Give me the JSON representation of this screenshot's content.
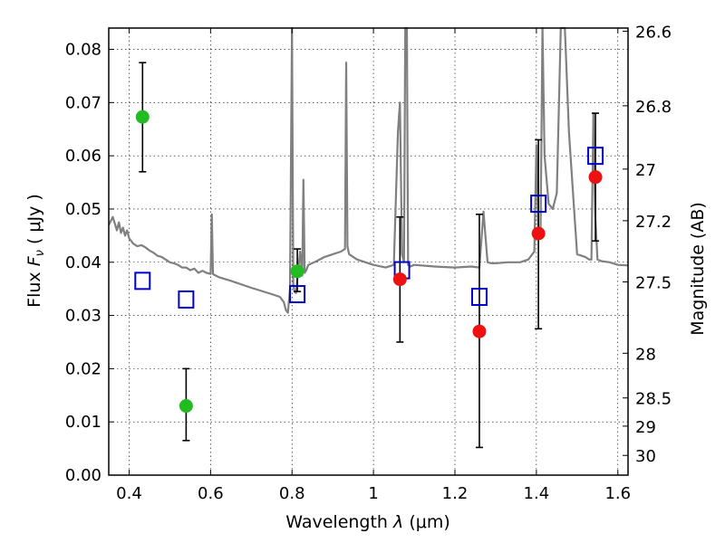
{
  "chart_data": {
    "type": "scatter",
    "xlabel_prefix": "Wavelength",
    "xlabel_symbol": "λ",
    "xlabel_unit": "(μm)",
    "ylabel_prefix": "Flux",
    "ylabel_symbol": "F",
    "ylabel_sub": "ν",
    "ylabel_unit": "( μJy )",
    "y2label": "Magnitude (AB)",
    "xlim": [
      0.35,
      1.625
    ],
    "ylim": [
      0.0,
      0.084
    ],
    "grid": true,
    "x_ticks": [
      {
        "v": 0.4,
        "label": "0.4"
      },
      {
        "v": 0.6,
        "label": "0.6"
      },
      {
        "v": 0.8,
        "label": "0.8"
      },
      {
        "v": 1.0,
        "label": "1"
      },
      {
        "v": 1.2,
        "label": "1.2"
      },
      {
        "v": 1.4,
        "label": "1.4"
      },
      {
        "v": 1.6,
        "label": "1.6"
      }
    ],
    "y_ticks": [
      {
        "v": 0.0,
        "label": "0.00"
      },
      {
        "v": 0.01,
        "label": "0.01"
      },
      {
        "v": 0.02,
        "label": "0.02"
      },
      {
        "v": 0.03,
        "label": "0.03"
      },
      {
        "v": 0.04,
        "label": "0.04"
      },
      {
        "v": 0.05,
        "label": "0.05"
      },
      {
        "v": 0.06,
        "label": "0.06"
      },
      {
        "v": 0.07,
        "label": "0.07"
      },
      {
        "v": 0.08,
        "label": "0.08"
      }
    ],
    "y2_ticks": [
      {
        "flux": 0.0834,
        "label": "26.6"
      },
      {
        "flux": 0.0694,
        "label": "26.8"
      },
      {
        "flux": 0.0575,
        "label": "27"
      },
      {
        "flux": 0.0478,
        "label": "27.2"
      },
      {
        "flux": 0.0363,
        "label": "27.5"
      },
      {
        "flux": 0.0229,
        "label": "28"
      },
      {
        "flux": 0.0145,
        "label": "28.5"
      },
      {
        "flux": 0.0092,
        "label": "29"
      },
      {
        "flux": 0.0037,
        "label": "30"
      }
    ],
    "series": [
      {
        "color": "#808080",
        "style": "line",
        "x": [
          0.35,
          0.36,
          0.37,
          0.375,
          0.38,
          0.385,
          0.39,
          0.395,
          0.4,
          0.41,
          0.42,
          0.43,
          0.44,
          0.45,
          0.46,
          0.47,
          0.48,
          0.49,
          0.5,
          0.51,
          0.52,
          0.53,
          0.54,
          0.55,
          0.56,
          0.57,
          0.58,
          0.59,
          0.6,
          0.603,
          0.606,
          0.61,
          0.62,
          0.65,
          0.7,
          0.75,
          0.77,
          0.78,
          0.785,
          0.79,
          0.795,
          0.8,
          0.803,
          0.806,
          0.81,
          0.815,
          0.82,
          0.825,
          0.828,
          0.831,
          0.835,
          0.84,
          0.86,
          0.88,
          0.9,
          0.92,
          0.93,
          0.933,
          0.936,
          0.94,
          0.96,
          1.0,
          1.03,
          1.05,
          1.06,
          1.065,
          1.07,
          1.075,
          1.078,
          1.082,
          1.085,
          1.09,
          1.1,
          1.15,
          1.2,
          1.24,
          1.26,
          1.27,
          1.28,
          1.29,
          1.3,
          1.33,
          1.36,
          1.38,
          1.395,
          1.4,
          1.405,
          1.41,
          1.415,
          1.42,
          1.43,
          1.44,
          1.45,
          1.46,
          1.47,
          1.48,
          1.5,
          1.52,
          1.53,
          1.535,
          1.54,
          1.545,
          1.55,
          1.56,
          1.58,
          1.6,
          1.625
        ],
        "y": [
          0.047,
          0.0485,
          0.046,
          0.0475,
          0.0455,
          0.0465,
          0.045,
          0.046,
          0.0445,
          0.0435,
          0.043,
          0.0432,
          0.0428,
          0.0422,
          0.0418,
          0.0412,
          0.041,
          0.0405,
          0.04,
          0.0398,
          0.0395,
          0.039,
          0.039,
          0.0385,
          0.0388,
          0.038,
          0.0384,
          0.038,
          0.0378,
          0.049,
          0.0378,
          0.0376,
          0.0372,
          0.0365,
          0.0352,
          0.034,
          0.0335,
          0.0325,
          0.031,
          0.0305,
          0.035,
          0.084,
          0.036,
          0.0345,
          0.0342,
          0.0385,
          0.042,
          0.0375,
          0.0555,
          0.038,
          0.0385,
          0.0395,
          0.0402,
          0.041,
          0.0415,
          0.042,
          0.0425,
          0.0775,
          0.043,
          0.0415,
          0.0405,
          0.0395,
          0.039,
          0.0395,
          0.0645,
          0.07,
          0.0415,
          0.04,
          0.084,
          0.084,
          0.0395,
          0.0392,
          0.0395,
          0.0392,
          0.039,
          0.0392,
          0.039,
          0.0495,
          0.04,
          0.0398,
          0.0398,
          0.04,
          0.04,
          0.0405,
          0.042,
          0.062,
          0.046,
          0.0445,
          0.084,
          0.06,
          0.051,
          0.05,
          0.053,
          0.084,
          0.084,
          0.0645,
          0.0415,
          0.041,
          0.0405,
          0.0405,
          0.068,
          0.048,
          0.0405,
          0.0402,
          0.04,
          0.0395,
          0.0394
        ]
      },
      {
        "color": "#0000cc",
        "style": "open-square",
        "x": [
          0.433,
          0.54,
          0.813,
          1.07,
          1.26,
          1.405,
          1.545
        ],
        "y": [
          0.0365,
          0.033,
          0.034,
          0.0385,
          0.0335,
          0.051,
          0.06
        ]
      },
      {
        "color": "#22bb22",
        "style": "filled-circle",
        "x": [
          0.433,
          0.54,
          0.813
        ],
        "y": [
          0.0673,
          0.013,
          0.0383
        ],
        "err_low": [
          0.057,
          0.0065,
          0.0345
        ],
        "err_high": [
          0.0775,
          0.02,
          0.0425
        ]
      },
      {
        "color": "#ee1111",
        "style": "filled-circle",
        "x": [
          1.065,
          1.26,
          1.405,
          1.545
        ],
        "y": [
          0.0368,
          0.027,
          0.0454,
          0.056
        ],
        "err_low": [
          0.025,
          0.0052,
          0.0275,
          0.044
        ],
        "err_high": [
          0.0485,
          0.049,
          0.063,
          0.068
        ]
      }
    ]
  }
}
